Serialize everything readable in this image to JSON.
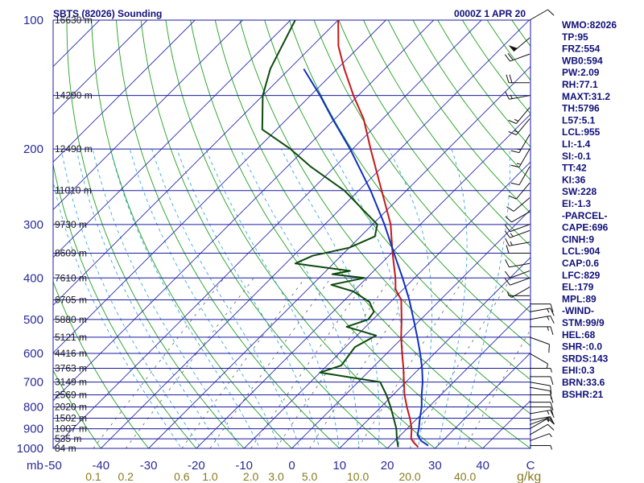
{
  "header": {
    "station": "SBTS (82026) Sounding",
    "time": "0000Z  1 APR 20"
  },
  "indices": [
    "WMO:82026",
    "TP:95",
    "FRZ:554",
    "WB0:594",
    "PW:2.09",
    "RH:77.1",
    "MAXT:31.2",
    "TH:5796",
    "L57:5.1",
    "LCL:955",
    "LI:-1.4",
    "SI:-0.1",
    "TT:42",
    "KI:36",
    "SW:228",
    "EI:-1.3",
    "-PARCEL-",
    "CAPE:696",
    "CINH:9",
    "LCL:904",
    "CAP:0.6",
    "LFC:829",
    "EL:179",
    "MPL:89",
    "-WIND-",
    "STM:99/9",
    "HEL:68",
    "SHR-:0.0",
    "SRDS:143",
    "EHI:0.3",
    "BRN:33.6",
    "BSHR:21"
  ],
  "colors": {
    "isobar": "#1a1aa0",
    "isotherm": "#2a2ab8",
    "dry_adiabat": "#20a020",
    "moist_adiabat": "#3aa8e0",
    "mixing_ratio": "#606060",
    "temperature": "#c81818",
    "dewpoint": "#0d4a0d",
    "parcel": "#1030c0",
    "wind": "#111111"
  },
  "chart_data": {
    "type": "line",
    "title": "SBTS (82026) Sounding",
    "pressure_label": "mb",
    "mixing_ratio_unit": "g/kg",
    "pressure_ticks": [
      100,
      200,
      300,
      400,
      500,
      600,
      700,
      800,
      900,
      1000
    ],
    "temperature_ticks": [
      "-50",
      "-40",
      "-30",
      "-20",
      "-10",
      "0",
      "10",
      "20",
      "30",
      "40"
    ],
    "temperature_range": [
      -50,
      50
    ],
    "mixing_ratio_labels": [
      "0.1",
      "0.2",
      "0.6",
      "1.0",
      "2.0",
      "3.0",
      "5.0",
      "10.0",
      "20.0",
      "40.0"
    ],
    "mixing_ratio_values": [
      0.1,
      0.2,
      0.6,
      1.0,
      2.0,
      3.0,
      5.0,
      10.0,
      20.0,
      40.0
    ],
    "height_levels": [
      {
        "p": 100,
        "label": "16630 m"
      },
      {
        "p": 150,
        "label": "14290 m"
      },
      {
        "p": 200,
        "label": "12490 m"
      },
      {
        "p": 250,
        "label": "11010 m"
      },
      {
        "p": 300,
        "label": "9730 m"
      },
      {
        "p": 350,
        "label": "8609 m"
      },
      {
        "p": 400,
        "label": "7610 m"
      },
      {
        "p": 450,
        "label": "6705 m"
      },
      {
        "p": 500,
        "label": "5880 m"
      },
      {
        "p": 550,
        "label": "5121 m"
      },
      {
        "p": 600,
        "label": "4416 m"
      },
      {
        "p": 650,
        "label": "3763 m"
      },
      {
        "p": 700,
        "label": "3149 m"
      },
      {
        "p": 750,
        "label": "2569 m"
      },
      {
        "p": 800,
        "label": "2020 m"
      },
      {
        "p": 850,
        "label": "1502 m"
      },
      {
        "p": 900,
        "label": "1007 m"
      },
      {
        "p": 950,
        "label": "535 m"
      },
      {
        "p": 1000,
        "label": "84 m"
      }
    ],
    "series": [
      {
        "color": "#c81818",
        "points": [
          {
            "p": 993,
            "t": 26.2
          },
          {
            "p": 970,
            "t": 24.4
          },
          {
            "p": 950,
            "t": 23.0
          },
          {
            "p": 925,
            "t": 22.0
          },
          {
            "p": 900,
            "t": 21.0
          },
          {
            "p": 850,
            "t": 18.4
          },
          {
            "p": 800,
            "t": 15.4
          },
          {
            "p": 750,
            "t": 12.4
          },
          {
            "p": 700,
            "t": 9.6
          },
          {
            "p": 650,
            "t": 6.6
          },
          {
            "p": 600,
            "t": 3.2
          },
          {
            "p": 550,
            "t": -0.4
          },
          {
            "p": 500,
            "t": -4.0
          },
          {
            "p": 450,
            "t": -8.2
          },
          {
            "p": 425,
            "t": -11.6
          },
          {
            "p": 400,
            "t": -14.0
          },
          {
            "p": 350,
            "t": -19.8
          },
          {
            "p": 300,
            "t": -26.2
          },
          {
            "p": 250,
            "t": -35.2
          },
          {
            "p": 200,
            "t": -46.2
          },
          {
            "p": 170,
            "t": -54.0
          },
          {
            "p": 150,
            "t": -61.0
          },
          {
            "p": 130,
            "t": -68.5
          },
          {
            "p": 115,
            "t": -74.5
          },
          {
            "p": 100,
            "t": -80.0
          }
        ]
      },
      {
        "color": "#0d4a0d",
        "points": [
          {
            "p": 993,
            "t": 22.0
          },
          {
            "p": 950,
            "t": 20.0
          },
          {
            "p": 900,
            "t": 17.8
          },
          {
            "p": 850,
            "t": 15.0
          },
          {
            "p": 800,
            "t": 12.0
          },
          {
            "p": 750,
            "t": 8.6
          },
          {
            "p": 700,
            "t": 4.6
          },
          {
            "p": 665,
            "t": -10.0
          },
          {
            "p": 640,
            "t": -7.0
          },
          {
            "p": 580,
            "t": -8.0
          },
          {
            "p": 545,
            "t": -6.0
          },
          {
            "p": 520,
            "t": -14.0
          },
          {
            "p": 500,
            "t": -11.0
          },
          {
            "p": 480,
            "t": -11.4
          },
          {
            "p": 455,
            "t": -14.4
          },
          {
            "p": 430,
            "t": -20.0
          },
          {
            "p": 415,
            "t": -26.0
          },
          {
            "p": 400,
            "t": -20.5
          },
          {
            "p": 392,
            "t": -28.0
          },
          {
            "p": 385,
            "t": -25.0
          },
          {
            "p": 370,
            "t": -38.0
          },
          {
            "p": 355,
            "t": -36.0
          },
          {
            "p": 340,
            "t": -30.0
          },
          {
            "p": 320,
            "t": -27.0
          },
          {
            "p": 300,
            "t": -29.0
          },
          {
            "p": 250,
            "t": -43.0
          },
          {
            "p": 220,
            "t": -55.0
          },
          {
            "p": 200,
            "t": -63.0
          },
          {
            "p": 180,
            "t": -73.0
          },
          {
            "p": 150,
            "t": -80.0
          },
          {
            "p": 130,
            "t": -84.0
          },
          {
            "p": 100,
            "t": -89.0
          }
        ]
      },
      {
        "color": "#1030c0",
        "points": [
          {
            "p": 985,
            "t": 28.0
          },
          {
            "p": 960,
            "t": 25.5
          },
          {
            "p": 930,
            "t": 23.5
          },
          {
            "p": 900,
            "t": 22.5
          },
          {
            "p": 850,
            "t": 20.5
          },
          {
            "p": 800,
            "t": 18.5
          },
          {
            "p": 750,
            "t": 16.0
          },
          {
            "p": 700,
            "t": 13.5
          },
          {
            "p": 650,
            "t": 10.5
          },
          {
            "p": 600,
            "t": 7.0
          },
          {
            "p": 550,
            "t": 3.0
          },
          {
            "p": 500,
            "t": -1.5
          },
          {
            "p": 450,
            "t": -6.5
          },
          {
            "p": 400,
            "t": -12.5
          },
          {
            "p": 350,
            "t": -19.5
          },
          {
            "p": 300,
            "t": -27.5
          },
          {
            "p": 250,
            "t": -37.5
          },
          {
            "p": 200,
            "t": -50.5
          },
          {
            "p": 170,
            "t": -60.5
          },
          {
            "p": 150,
            "t": -68.0
          },
          {
            "p": 130,
            "t": -77.0
          }
        ]
      }
    ],
    "winds": [
      {
        "p": 985,
        "dir": 90,
        "spd": 5
      },
      {
        "p": 960,
        "dir": 70,
        "spd": 5
      },
      {
        "p": 930,
        "dir": 60,
        "spd": 10
      },
      {
        "p": 900,
        "dir": 60,
        "spd": 10
      },
      {
        "p": 880,
        "dir": 70,
        "spd": 15
      },
      {
        "p": 860,
        "dir": 80,
        "spd": 15
      },
      {
        "p": 830,
        "dir": 80,
        "spd": 15
      },
      {
        "p": 800,
        "dir": 90,
        "spd": 10
      },
      {
        "p": 780,
        "dir": 90,
        "spd": 10
      },
      {
        "p": 750,
        "dir": 90,
        "spd": 10
      },
      {
        "p": 720,
        "dir": 100,
        "spd": 10
      },
      {
        "p": 700,
        "dir": 100,
        "spd": 10
      },
      {
        "p": 680,
        "dir": 90,
        "spd": 10
      },
      {
        "p": 650,
        "dir": 90,
        "spd": 5
      },
      {
        "p": 600,
        "dir": 120,
        "spd": 5
      },
      {
        "p": 550,
        "dir": 110,
        "spd": 10
      },
      {
        "p": 520,
        "dir": 90,
        "spd": 15
      },
      {
        "p": 500,
        "dir": 80,
        "spd": 15
      },
      {
        "p": 480,
        "dir": 80,
        "spd": 15
      },
      {
        "p": 460,
        "dir": 90,
        "spd": 10
      },
      {
        "p": 440,
        "dir": 270,
        "spd": 5
      },
      {
        "p": 420,
        "dir": 240,
        "spd": 5
      },
      {
        "p": 400,
        "dir": 250,
        "spd": 10
      },
      {
        "p": 385,
        "dir": 250,
        "spd": 10
      },
      {
        "p": 370,
        "dir": 260,
        "spd": 10
      },
      {
        "p": 350,
        "dir": 270,
        "spd": 10
      },
      {
        "p": 330,
        "dir": 260,
        "spd": 15
      },
      {
        "p": 310,
        "dir": 250,
        "spd": 15
      },
      {
        "p": 300,
        "dir": 250,
        "spd": 10
      },
      {
        "p": 280,
        "dir": 240,
        "spd": 10
      },
      {
        "p": 260,
        "dir": 230,
        "spd": 10
      },
      {
        "p": 240,
        "dir": 220,
        "spd": 10
      },
      {
        "p": 220,
        "dir": 210,
        "spd": 10
      },
      {
        "p": 200,
        "dir": 210,
        "spd": 15
      },
      {
        "p": 185,
        "dir": 210,
        "spd": 15
      },
      {
        "p": 170,
        "dir": 220,
        "spd": 15
      },
      {
        "p": 160,
        "dir": 220,
        "spd": 15
      },
      {
        "p": 150,
        "dir": 260,
        "spd": 15
      },
      {
        "p": 140,
        "dir": 270,
        "spd": 20
      },
      {
        "p": 120,
        "dir": 250,
        "spd": 20
      },
      {
        "p": 110,
        "dir": 230,
        "spd": 50
      },
      {
        "p": 100,
        "dir": 60,
        "spd": 10
      }
    ]
  }
}
